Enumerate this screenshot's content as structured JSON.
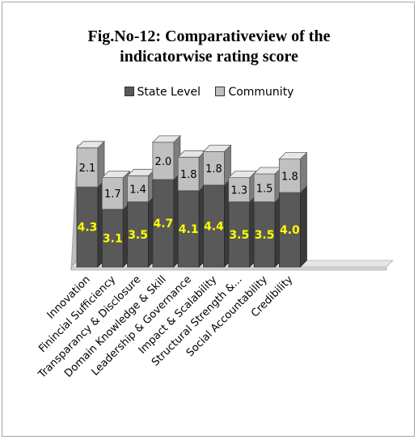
{
  "chart_data": {
    "type": "bar",
    "stacked": true,
    "title_lines": [
      "Fig.No-12: Comparativeview of the",
      "indicatorwise rating score"
    ],
    "categories": [
      "Innovation",
      "Finincial Sufficiency",
      "Transparancy & Disclosure",
      "Domain Knowledge & Skill",
      "Leadership & Governance",
      "Impact & Scalability",
      "Structural Strength &...",
      "Social Accountability",
      "Credibility"
    ],
    "series": [
      {
        "name": "State Level",
        "color": "#595959",
        "label_color": "#ffff00",
        "values": [
          4.3,
          3.1,
          3.5,
          4.7,
          4.1,
          4.4,
          3.5,
          3.5,
          4.0
        ],
        "labels": [
          "4.3",
          "3.1",
          "3.5",
          "4.7",
          "4.1",
          "4.4",
          "3.5",
          "3.5",
          "4.0"
        ]
      },
      {
        "name": "Community",
        "color": "#c0c0c0",
        "label_color": "#000000",
        "values": [
          2.1,
          1.7,
          1.4,
          2.0,
          1.8,
          1.8,
          1.3,
          1.5,
          1.8
        ],
        "labels": [
          "2.1",
          "1.7",
          "1.4",
          "2.0",
          "1.8",
          "1.8",
          "1.3",
          "1.5",
          "1.8"
        ]
      }
    ],
    "legend_position": "top",
    "grid": false,
    "ylim": [
      0,
      7
    ]
  }
}
